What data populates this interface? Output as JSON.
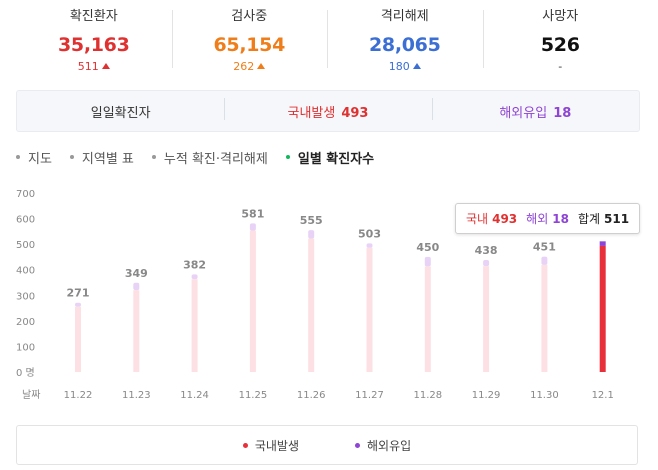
{
  "stats": [
    {
      "label": "확진환자",
      "value": "35,163",
      "delta": "511",
      "up": true,
      "color": "#e03131",
      "delta_color": "#e03131"
    },
    {
      "label": "검사중",
      "value": "65,154",
      "delta": "262",
      "up": true,
      "color": "#ef7d1a",
      "delta_color": "#ef7d1a"
    },
    {
      "label": "격리해제",
      "value": "28,065",
      "delta": "180",
      "up": true,
      "color": "#3b6fd4",
      "delta_color": "#3b6fd4"
    },
    {
      "label": "사망자",
      "value": "526",
      "delta": "-",
      "up": false,
      "color": "#111111",
      "delta_color": "#333333"
    }
  ],
  "summary": {
    "daily_label": "일일확진자",
    "domestic_label": "국내발생",
    "domestic_value": "493",
    "imported_label": "해외유입",
    "imported_value": "18"
  },
  "tabs": [
    {
      "label": "지도",
      "active": false
    },
    {
      "label": "지역별 표",
      "active": false
    },
    {
      "label": "누적 확진·격리해제",
      "active": false
    },
    {
      "label": "일별 확진자수",
      "active": true
    }
  ],
  "colors": {
    "domestic": "#e8303a",
    "imported": "#8e44d4",
    "domestic_light": "#fde0e3",
    "imported_light": "#e8d3f7"
  },
  "tooltip": {
    "domestic_label": "국내",
    "domestic_value": "493",
    "imported_label": "해외",
    "imported_value": "18",
    "total_label": "합계",
    "total_value": "511"
  },
  "legend": {
    "domestic": "국내발생",
    "imported": "해외유입"
  },
  "chart_data": {
    "type": "bar",
    "stacked": true,
    "xlabel": "날짜",
    "y_tick_labels": [
      "0 명",
      "100",
      "200",
      "300",
      "400",
      "500",
      "600",
      "700"
    ],
    "y_ticks": [
      0,
      100,
      200,
      300,
      400,
      500,
      600,
      700
    ],
    "ylim": [
      0,
      700
    ],
    "grid": false,
    "legend_position": "bottom",
    "categories": [
      "11.22",
      "11.23",
      "11.24",
      "11.25",
      "11.26",
      "11.27",
      "11.28",
      "11.29",
      "11.30",
      "12.1"
    ],
    "totals": [
      271,
      349,
      382,
      581,
      555,
      503,
      450,
      438,
      451,
      511
    ],
    "series": [
      {
        "name": "국내발생",
        "values": [
          255,
          320,
          363,
          553,
          522,
          486,
          413,
          414,
          419,
          493
        ]
      },
      {
        "name": "해외유입",
        "values": [
          16,
          29,
          19,
          28,
          33,
          17,
          37,
          24,
          32,
          18
        ]
      }
    ],
    "highlighted_category": "12.1"
  }
}
